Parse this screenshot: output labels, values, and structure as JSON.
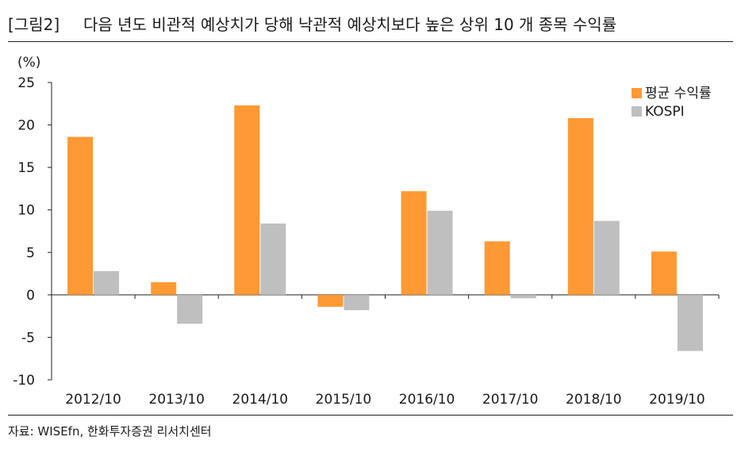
{
  "figure_tag": "[그림2]",
  "figure_title": "다음 년도 비관적 예상치가 당해 낙관적 예상치보다 높은 상위 10 개 종목 수익률",
  "source": "자료: WISEfn, 한화투자증권 리서치센터",
  "chart_data": {
    "type": "bar",
    "title": "다음 년도 비관적 예상치가 당해 낙관적 예상치보다 높은 상위 10 개 종목 수익률",
    "ylabel": "(%)",
    "xlabel": "",
    "categories": [
      "2012/10",
      "2013/10",
      "2014/10",
      "2015/10",
      "2016/10",
      "2017/10",
      "2018/10",
      "2019/10"
    ],
    "series": [
      {
        "name": "평균 수익률",
        "color": "#FF9933",
        "values": [
          18.6,
          1.5,
          22.3,
          -1.4,
          12.2,
          6.3,
          20.8,
          5.1
        ]
      },
      {
        "name": "KOSPI",
        "color": "#BFBFBF",
        "values": [
          2.8,
          -3.4,
          8.4,
          -1.8,
          9.9,
          -0.4,
          8.7,
          -6.6
        ]
      }
    ],
    "ylim": [
      -10,
      25
    ],
    "yticks": [
      "25",
      "20",
      "15",
      "10",
      "5",
      "0",
      "-5",
      "-10"
    ],
    "ytick_values": [
      25,
      20,
      15,
      10,
      5,
      0,
      -5,
      -10
    ],
    "grid": false,
    "legend_position": "top-right"
  }
}
